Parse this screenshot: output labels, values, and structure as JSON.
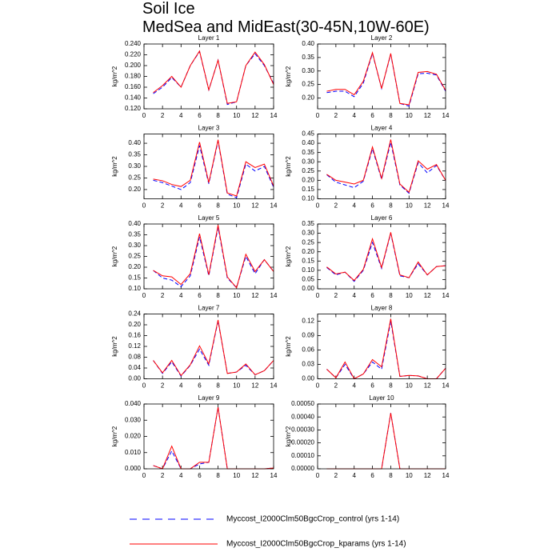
{
  "title": "Soil Ice",
  "subtitle": "MedSea and MidEast(30-45N,10W-60E)",
  "chart_data": [
    {
      "type": "line",
      "title": "Layer 1",
      "ylabel": "kg/m^2",
      "x": [
        1,
        2,
        3,
        4,
        5,
        6,
        7,
        8,
        9,
        10,
        11,
        12,
        13,
        14
      ],
      "xlim": [
        0,
        14
      ],
      "xticks": [
        0,
        2,
        4,
        6,
        8,
        10,
        12,
        14
      ],
      "ylim": [
        0.12,
        0.24
      ],
      "yticks": [
        {
          "value": 0.12,
          "label": "0.120"
        },
        {
          "value": 0.14,
          "label": "0.140"
        },
        {
          "value": 0.16,
          "label": "0.160"
        },
        {
          "value": 0.18,
          "label": "0.180"
        },
        {
          "value": 0.2,
          "label": "0.200"
        },
        {
          "value": 0.22,
          "label": "0.220"
        },
        {
          "value": 0.24,
          "label": "0.240"
        }
      ],
      "series": [
        {
          "name": "Myccost_I2000Clm50BgcCrop_control (yrs 1-14)",
          "color": "#0000ff",
          "dash": true,
          "values": [
            0.148,
            0.16,
            0.178,
            0.16,
            0.2,
            0.226,
            0.155,
            0.21,
            0.128,
            0.133,
            0.2,
            0.222,
            0.2,
            0.167
          ]
        },
        {
          "name": "Myccost_I2000Clm50BgcCrop_kparams (yrs 1-14)",
          "color": "#ff0000",
          "dash": false,
          "values": [
            0.15,
            0.163,
            0.18,
            0.16,
            0.2,
            0.227,
            0.155,
            0.21,
            0.13,
            0.133,
            0.2,
            0.225,
            0.202,
            0.165
          ]
        }
      ]
    },
    {
      "type": "line",
      "title": "Layer 2",
      "ylabel": "kg/m^2",
      "x": [
        1,
        2,
        3,
        4,
        5,
        6,
        7,
        8,
        9,
        10,
        11,
        12,
        13,
        14
      ],
      "xlim": [
        0,
        14
      ],
      "xticks": [
        0,
        2,
        4,
        6,
        8,
        10,
        12,
        14
      ],
      "ylim": [
        0.16,
        0.4
      ],
      "yticks": [
        {
          "value": 0.2,
          "label": "0.20"
        },
        0.25,
        {
          "value": 0.3,
          "label": "0.30"
        },
        0.35,
        {
          "value": 0.4,
          "label": "0.40"
        }
      ],
      "series": [
        {
          "name": "Myccost_I2000Clm50BgcCrop_control (yrs 1-14)",
          "color": "#0000ff",
          "dash": true,
          "values": [
            0.22,
            0.225,
            0.225,
            0.205,
            0.255,
            0.365,
            0.235,
            0.362,
            0.18,
            0.17,
            0.29,
            0.292,
            0.285,
            0.225
          ]
        },
        {
          "name": "Myccost_I2000Clm50BgcCrop_kparams (yrs 1-14)",
          "color": "#ff0000",
          "dash": false,
          "values": [
            0.225,
            0.232,
            0.232,
            0.212,
            0.262,
            0.368,
            0.235,
            0.365,
            0.18,
            0.175,
            0.295,
            0.298,
            0.288,
            0.228
          ]
        }
      ]
    },
    {
      "type": "line",
      "title": "Layer 3",
      "ylabel": "kg/m^2",
      "x": [
        1,
        2,
        3,
        4,
        5,
        6,
        7,
        8,
        9,
        10,
        11,
        12,
        13,
        14
      ],
      "xlim": [
        0,
        14
      ],
      "xticks": [
        0,
        2,
        4,
        6,
        8,
        10,
        12,
        14
      ],
      "ylim": [
        0.16,
        0.44
      ],
      "yticks": [
        {
          "value": 0.2,
          "label": "0.20"
        },
        0.25,
        {
          "value": 0.3,
          "label": "0.30"
        },
        0.35,
        {
          "value": 0.4,
          "label": "0.40"
        }
      ],
      "series": [
        {
          "name": "Myccost_I2000Clm50BgcCrop_control (yrs 1-14)",
          "color": "#0000ff",
          "dash": true,
          "values": [
            0.24,
            0.23,
            0.215,
            0.2,
            0.23,
            0.39,
            0.225,
            0.41,
            0.18,
            0.165,
            0.31,
            0.28,
            0.3,
            0.21
          ]
        },
        {
          "name": "Myccost_I2000Clm50BgcCrop_kparams (yrs 1-14)",
          "color": "#ff0000",
          "dash": false,
          "values": [
            0.245,
            0.238,
            0.222,
            0.213,
            0.24,
            0.405,
            0.23,
            0.415,
            0.185,
            0.172,
            0.32,
            0.295,
            0.31,
            0.215
          ]
        }
      ]
    },
    {
      "type": "line",
      "title": "Layer 4",
      "ylabel": "kg/m^2",
      "x": [
        1,
        2,
        3,
        4,
        5,
        6,
        7,
        8,
        9,
        10,
        11,
        12,
        13,
        14
      ],
      "xlim": [
        0,
        14
      ],
      "xticks": [
        0,
        2,
        4,
        6,
        8,
        10,
        12,
        14
      ],
      "ylim": [
        0.1,
        0.45
      ],
      "yticks": [
        {
          "value": 0.1,
          "label": "0.10"
        },
        0.15,
        {
          "value": 0.2,
          "label": "0.20"
        },
        0.25,
        {
          "value": 0.3,
          "label": "0.30"
        },
        0.35,
        {
          "value": 0.4,
          "label": "0.40"
        },
        0.45
      ],
      "series": [
        {
          "name": "Myccost_I2000Clm50BgcCrop_control (yrs 1-14)",
          "color": "#0000ff",
          "dash": true,
          "values": [
            0.23,
            0.19,
            0.175,
            0.16,
            0.195,
            0.37,
            0.205,
            0.405,
            0.175,
            0.13,
            0.295,
            0.24,
            0.28,
            0.2
          ]
        },
        {
          "name": "Myccost_I2000Clm50BgcCrop_kparams (yrs 1-14)",
          "color": "#ff0000",
          "dash": false,
          "values": [
            0.232,
            0.2,
            0.19,
            0.18,
            0.2,
            0.38,
            0.21,
            0.42,
            0.18,
            0.135,
            0.305,
            0.26,
            0.285,
            0.2
          ]
        }
      ]
    },
    {
      "type": "line",
      "title": "Layer 5",
      "ylabel": "kg/m^2",
      "x": [
        1,
        2,
        3,
        4,
        5,
        6,
        7,
        8,
        9,
        10,
        11,
        12,
        13,
        14
      ],
      "xlim": [
        0,
        14
      ],
      "xticks": [
        0,
        2,
        4,
        6,
        8,
        10,
        12,
        14
      ],
      "ylim": [
        0.1,
        0.4
      ],
      "yticks": [
        {
          "value": 0.1,
          "label": "0.10"
        },
        0.15,
        {
          "value": 0.2,
          "label": "0.20"
        },
        0.25,
        {
          "value": 0.3,
          "label": "0.30"
        },
        0.35,
        {
          "value": 0.4,
          "label": "0.40"
        }
      ],
      "series": [
        {
          "name": "Myccost_I2000Clm50BgcCrop_control (yrs 1-14)",
          "color": "#0000ff",
          "dash": true,
          "values": [
            0.185,
            0.15,
            0.14,
            0.11,
            0.16,
            0.34,
            0.16,
            0.385,
            0.15,
            0.105,
            0.25,
            0.17,
            0.235,
            0.18
          ]
        },
        {
          "name": "Myccost_I2000Clm50BgcCrop_kparams (yrs 1-14)",
          "color": "#ff0000",
          "dash": false,
          "values": [
            0.185,
            0.16,
            0.155,
            0.12,
            0.17,
            0.355,
            0.165,
            0.395,
            0.155,
            0.105,
            0.26,
            0.18,
            0.235,
            0.18
          ]
        }
      ]
    },
    {
      "type": "line",
      "title": "Layer 6",
      "ylabel": "kg/m^2",
      "x": [
        1,
        2,
        3,
        4,
        5,
        6,
        7,
        8,
        9,
        10,
        11,
        12,
        13,
        14
      ],
      "xlim": [
        0,
        14
      ],
      "xticks": [
        0,
        2,
        4,
        6,
        8,
        10,
        12,
        14
      ],
      "ylim": [
        0,
        0.35
      ],
      "yticks": [
        {
          "value": 0,
          "label": "0.00"
        },
        0.05,
        {
          "value": 0.1,
          "label": "0.10"
        },
        0.15,
        {
          "value": 0.2,
          "label": "0.20"
        },
        0.25,
        {
          "value": 0.3,
          "label": "0.30"
        },
        0.35
      ],
      "series": [
        {
          "name": "Myccost_I2000Clm50BgcCrop_control (yrs 1-14)",
          "color": "#0000ff",
          "dash": true,
          "values": [
            0.115,
            0.075,
            0.09,
            0.04,
            0.1,
            0.25,
            0.11,
            0.3,
            0.07,
            0.06,
            0.135,
            0.075,
            0.12,
            0.125
          ]
        },
        {
          "name": "Myccost_I2000Clm50BgcCrop_kparams (yrs 1-14)",
          "color": "#ff0000",
          "dash": false,
          "values": [
            0.118,
            0.08,
            0.09,
            0.045,
            0.105,
            0.27,
            0.115,
            0.305,
            0.075,
            0.06,
            0.145,
            0.075,
            0.12,
            0.125
          ]
        }
      ]
    },
    {
      "type": "line",
      "title": "Layer 7",
      "ylabel": "kg/m^2",
      "x": [
        1,
        2,
        3,
        4,
        5,
        6,
        7,
        8,
        9,
        10,
        11,
        12,
        13,
        14
      ],
      "xlim": [
        0,
        14
      ],
      "xticks": [
        0,
        2,
        4,
        6,
        8,
        10,
        12,
        14
      ],
      "ylim": [
        0,
        0.24
      ],
      "yticks": [
        {
          "value": 0,
          "label": "0.00"
        },
        0.04,
        0.08,
        0.12,
        0.16,
        {
          "value": 0.2,
          "label": "0.20"
        },
        0.24
      ],
      "series": [
        {
          "name": "Myccost_I2000Clm50BgcCrop_control (yrs 1-14)",
          "color": "#0000ff",
          "dash": true,
          "values": [
            0.068,
            0.02,
            0.063,
            0.01,
            0.05,
            0.11,
            0.05,
            0.215,
            0.02,
            0.025,
            0.05,
            0.015,
            0.03,
            0.068
          ]
        },
        {
          "name": "Myccost_I2000Clm50BgcCrop_kparams (yrs 1-14)",
          "color": "#ff0000",
          "dash": false,
          "values": [
            0.068,
            0.022,
            0.068,
            0.012,
            0.052,
            0.122,
            0.055,
            0.218,
            0.02,
            0.025,
            0.055,
            0.015,
            0.03,
            0.068
          ]
        }
      ]
    },
    {
      "type": "line",
      "title": "Layer 8",
      "ylabel": "kg/m^2",
      "x": [
        1,
        2,
        3,
        4,
        5,
        6,
        7,
        8,
        9,
        10,
        11,
        12,
        13,
        14
      ],
      "xlim": [
        0,
        14
      ],
      "xticks": [
        0,
        2,
        4,
        6,
        8,
        10,
        12,
        14
      ],
      "ylim": [
        0,
        0.135
      ],
      "yticks": [
        {
          "value": 0,
          "label": "0.00"
        },
        0.03,
        0.06,
        0.09,
        0.12
      ],
      "series": [
        {
          "name": "Myccost_I2000Clm50BgcCrop_control (yrs 1-14)",
          "color": "#0000ff",
          "dash": true,
          "values": [
            0.02,
            0.002,
            0.03,
            0,
            0.01,
            0.035,
            0.02,
            0.12,
            0.005,
            0.007,
            0.006,
            0,
            0,
            0.022
          ]
        },
        {
          "name": "Myccost_I2000Clm50BgcCrop_kparams (yrs 1-14)",
          "color": "#ff0000",
          "dash": false,
          "values": [
            0.02,
            0.002,
            0.035,
            0,
            0.01,
            0.04,
            0.025,
            0.125,
            0.005,
            0.007,
            0.006,
            0,
            0,
            0.022
          ]
        }
      ]
    },
    {
      "type": "line",
      "title": "Layer 9",
      "ylabel": "kg/m^2",
      "x": [
        1,
        2,
        3,
        4,
        5,
        6,
        7,
        8,
        9,
        10,
        11,
        12,
        13,
        14
      ],
      "xlim": [
        0,
        14
      ],
      "xticks": [
        0,
        2,
        4,
        6,
        8,
        10,
        12,
        14
      ],
      "ylim": [
        0,
        0.04
      ],
      "yticks": [
        {
          "value": 0,
          "label": "0.000"
        },
        {
          "value": 0.01,
          "label": "0.010"
        },
        {
          "value": 0.02,
          "label": "0.020"
        },
        {
          "value": 0.03,
          "label": "0.030"
        },
        {
          "value": 0.04,
          "label": "0.040"
        }
      ],
      "series": [
        {
          "name": "Myccost_I2000Clm50BgcCrop_control (yrs 1-14)",
          "color": "#0000ff",
          "dash": true,
          "values": [
            0.002,
            0,
            0.011,
            0,
            0,
            0.003,
            0.004,
            0.038,
            0,
            0,
            0,
            0,
            0,
            0.0005
          ]
        },
        {
          "name": "Myccost_I2000Clm50BgcCrop_kparams (yrs 1-14)",
          "color": "#ff0000",
          "dash": false,
          "values": [
            0.002,
            0,
            0.014,
            0,
            0,
            0.004,
            0.004,
            0.038,
            0,
            0,
            0,
            0,
            0,
            0.0005
          ]
        }
      ]
    },
    {
      "type": "line",
      "title": "Layer 10",
      "ylabel": "kg/m^2",
      "x": [
        1,
        2,
        3,
        4,
        5,
        6,
        7,
        8,
        9,
        10,
        11,
        12,
        13,
        14
      ],
      "xlim": [
        0,
        14
      ],
      "xticks": [
        0,
        2,
        4,
        6,
        8,
        10,
        12,
        14
      ],
      "ylim": [
        0,
        0.0005
      ],
      "yticks": [
        {
          "value": 0,
          "label": "0.00000"
        },
        {
          "value": 0.0001,
          "label": "0.00010"
        },
        {
          "value": 0.0002,
          "label": "0.00020"
        },
        {
          "value": 0.0003,
          "label": "0.00030"
        },
        {
          "value": 0.0004,
          "label": "0.00040"
        },
        {
          "value": 0.0005,
          "label": "0.00050"
        }
      ],
      "series": [
        {
          "name": "Myccost_I2000Clm50BgcCrop_control (yrs 1-14)",
          "color": "#0000ff",
          "dash": true,
          "values": [
            0,
            0,
            0,
            0,
            0,
            0,
            0,
            0.00043,
            0,
            0,
            0,
            0,
            0,
            0
          ]
        },
        {
          "name": "Myccost_I2000Clm50BgcCrop_kparams (yrs 1-14)",
          "color": "#ff0000",
          "dash": false,
          "values": [
            0,
            0,
            0,
            0,
            0,
            0,
            0,
            0.00043,
            0,
            0,
            0,
            0,
            0,
            0
          ]
        }
      ]
    }
  ]
}
